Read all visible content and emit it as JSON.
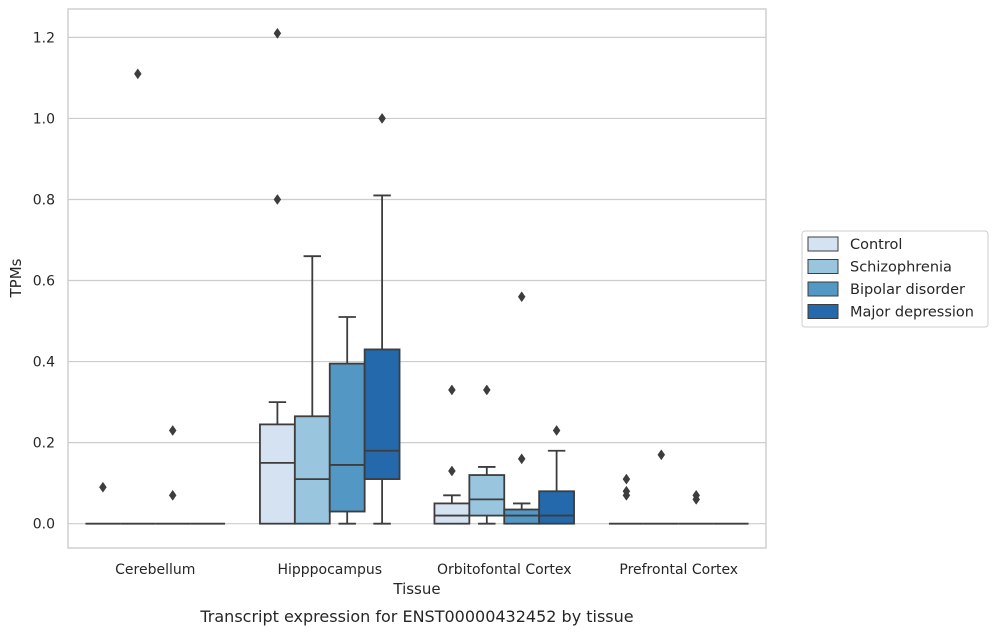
{
  "chart_data": {
    "type": "boxplot",
    "caption": "Transcript expression for ENST00000432452 by tissue",
    "xlabel": "Tissue",
    "ylabel": "TPMs",
    "ylim": [
      -0.06,
      1.27
    ],
    "yticks": [
      0.0,
      0.2,
      0.4,
      0.6,
      0.8,
      1.0,
      1.2
    ],
    "ytick_labels": [
      "0.0",
      "0.2",
      "0.4",
      "0.6",
      "0.8",
      "1.0",
      "1.2"
    ],
    "grid": "horizontal",
    "legend_position": "right",
    "categories": [
      "Cerebellum",
      "Hipppocampus",
      "Orbitofontal Cortex",
      "Prefrontal Cortex"
    ],
    "series": [
      {
        "name": "Control",
        "color": "#d5e2f1",
        "boxes": [
          {
            "q1": 0,
            "median": 0,
            "q3": 0,
            "whisker_low": 0,
            "whisker_high": 0,
            "outliers": [
              0.09
            ]
          },
          {
            "q1": 0,
            "median": 0.15,
            "q3": 0.245,
            "whisker_low": 0,
            "whisker_high": 0.3,
            "outliers": [
              0.8,
              1.21
            ]
          },
          {
            "q1": 0,
            "median": 0.02,
            "q3": 0.05,
            "whisker_low": 0,
            "whisker_high": 0.07,
            "outliers": [
              0.13,
              0.33
            ]
          },
          {
            "q1": 0,
            "median": 0,
            "q3": 0,
            "whisker_low": 0,
            "whisker_high": 0,
            "outliers": [
              0.07,
              0.08,
              0.11
            ]
          }
        ]
      },
      {
        "name": "Schizophrenia",
        "color": "#9ac5de",
        "boxes": [
          {
            "q1": 0,
            "median": 0,
            "q3": 0,
            "whisker_low": 0,
            "whisker_high": 0,
            "outliers": [
              1.11
            ]
          },
          {
            "q1": 0,
            "median": 0.11,
            "q3": 0.265,
            "whisker_low": 0,
            "whisker_high": 0.66,
            "outliers": []
          },
          {
            "q1": 0.02,
            "median": 0.06,
            "q3": 0.12,
            "whisker_low": 0,
            "whisker_high": 0.14,
            "outliers": [
              0.33
            ]
          },
          {
            "q1": 0,
            "median": 0,
            "q3": 0,
            "whisker_low": 0,
            "whisker_high": 0,
            "outliers": [
              0.17
            ]
          }
        ]
      },
      {
        "name": "Bipolar disorder",
        "color": "#5397c5",
        "boxes": [
          {
            "q1": 0,
            "median": 0,
            "q3": 0,
            "whisker_low": 0,
            "whisker_high": 0,
            "outliers": [
              0.07,
              0.23
            ]
          },
          {
            "q1": 0.03,
            "median": 0.145,
            "q3": 0.395,
            "whisker_low": 0,
            "whisker_high": 0.51,
            "outliers": []
          },
          {
            "q1": 0,
            "median": 0.02,
            "q3": 0.035,
            "whisker_low": 0,
            "whisker_high": 0.05,
            "outliers": [
              0.16,
              0.56
            ]
          },
          {
            "q1": 0,
            "median": 0,
            "q3": 0,
            "whisker_low": 0,
            "whisker_high": 0,
            "outliers": [
              0.06,
              0.07
            ]
          }
        ]
      },
      {
        "name": "Major depression",
        "color": "#2369ac",
        "boxes": [
          {
            "q1": 0,
            "median": 0,
            "q3": 0,
            "whisker_low": 0,
            "whisker_high": 0,
            "outliers": []
          },
          {
            "q1": 0.11,
            "median": 0.18,
            "q3": 0.43,
            "whisker_low": 0,
            "whisker_high": 0.81,
            "outliers": [
              1.0
            ]
          },
          {
            "q1": 0,
            "median": 0.02,
            "q3": 0.08,
            "whisker_low": 0,
            "whisker_high": 0.18,
            "outliers": [
              0.23
            ]
          },
          {
            "q1": 0,
            "median": 0,
            "q3": 0,
            "whisker_low": 0,
            "whisker_high": 0,
            "outliers": []
          }
        ]
      }
    ]
  }
}
